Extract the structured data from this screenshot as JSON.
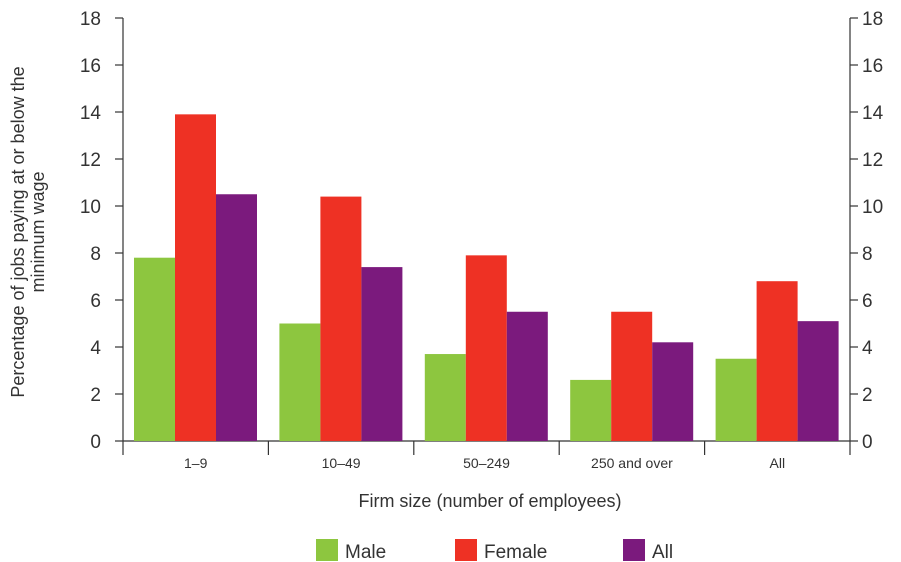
{
  "chart_data": {
    "type": "bar",
    "categories": [
      "1–9",
      "10–49",
      "50–249",
      "250 and over",
      "All"
    ],
    "series": [
      {
        "name": "Male",
        "values": [
          7.8,
          5.0,
          3.7,
          2.6,
          3.5
        ],
        "color": "#8dc63f"
      },
      {
        "name": "Female",
        "values": [
          13.9,
          10.4,
          7.9,
          5.5,
          6.8
        ],
        "color": "#ee3124"
      },
      {
        "name": "All",
        "values": [
          10.5,
          7.4,
          5.5,
          4.2,
          5.1
        ],
        "color": "#7b1a7d"
      }
    ],
    "ylim": [
      0,
      18
    ],
    "yticks": [
      "0",
      "2",
      "4",
      "6",
      "8",
      "10",
      "12",
      "14",
      "16",
      "18"
    ],
    "xlabel": "Firm size (number of employees)",
    "ylabel_lines": [
      "Percentage of jobs paying at or below the",
      "minimum wage"
    ],
    "grid": false,
    "legend_position": "bottom"
  }
}
